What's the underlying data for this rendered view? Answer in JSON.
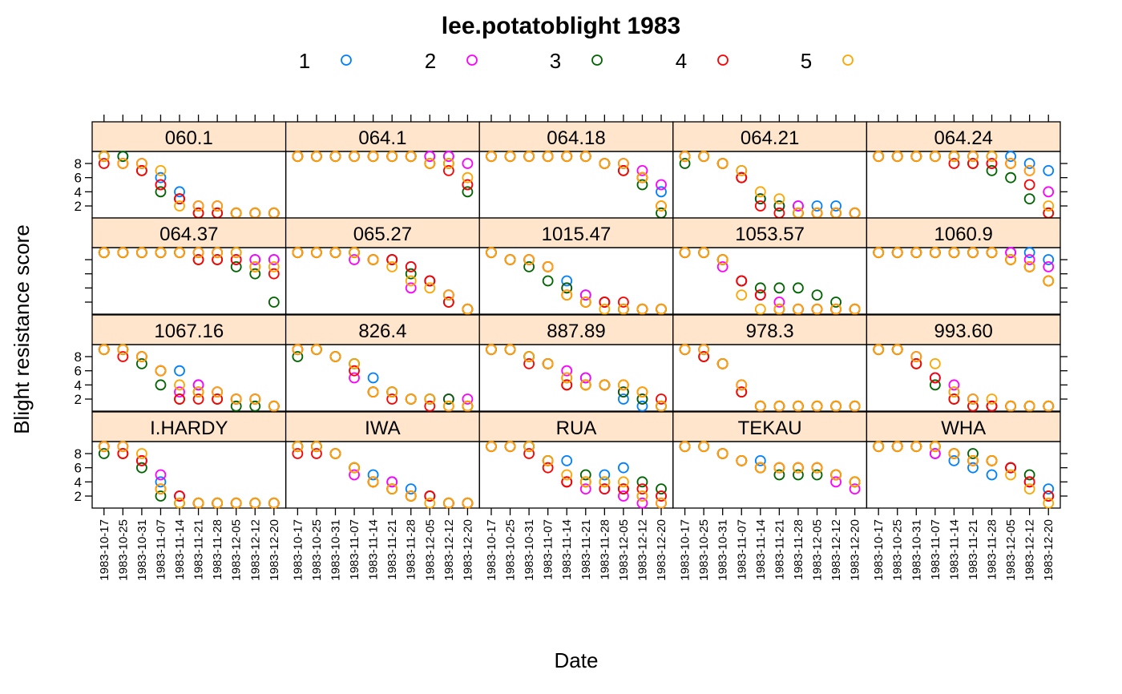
{
  "chart_data": {
    "type": "scatter",
    "title": "lee.potatoblight 1983",
    "xlabel": "Date",
    "ylabel": "Blight resistance score",
    "layout": {
      "columns": 5,
      "rows": 4
    },
    "y_ticks": [
      2,
      4,
      6,
      8
    ],
    "ylim": [
      0.3,
      9.7
    ],
    "dates": [
      "1983-10-17",
      "1983-10-25",
      "1983-10-31",
      "1983-11-07",
      "1983-11-14",
      "1983-11-21",
      "1983-11-28",
      "1983-12-05",
      "1983-12-12",
      "1983-12-20"
    ],
    "legend": {
      "placement": "top",
      "entries": [
        {
          "label": "1",
          "color": "#0080ff"
        },
        {
          "label": "2",
          "color": "#ff00ff"
        },
        {
          "label": "3",
          "color": "#006400"
        },
        {
          "label": "4",
          "color": "#ff0000"
        },
        {
          "label": "5",
          "color": "#ffa500"
        }
      ]
    },
    "strip_color": "#ffe5cc",
    "panels": [
      {
        "name": "060.1",
        "series": [
          [
            9,
            9,
            8,
            6,
            4,
            2,
            2,
            1,
            1,
            1
          ],
          [
            9,
            8,
            8,
            5,
            3,
            2,
            2,
            1,
            1,
            1
          ],
          [
            9,
            9,
            7,
            4,
            3,
            1,
            1,
            1,
            1,
            1
          ],
          [
            8,
            8,
            7,
            5,
            3,
            1,
            1,
            1,
            1,
            1
          ],
          [
            9,
            8,
            8,
            7,
            2,
            2,
            2,
            1,
            1,
            1
          ]
        ]
      },
      {
        "name": "064.1",
        "series": [
          [
            9,
            9,
            9,
            9,
            9,
            9,
            9,
            9,
            9,
            5
          ],
          [
            9,
            9,
            9,
            9,
            9,
            9,
            9,
            9,
            9,
            8
          ],
          [
            9,
            9,
            9,
            9,
            9,
            9,
            9,
            8,
            8,
            4
          ],
          [
            9,
            9,
            9,
            9,
            9,
            9,
            9,
            8,
            7,
            5
          ],
          [
            9,
            9,
            9,
            9,
            9,
            9,
            9,
            8,
            8,
            6
          ]
        ]
      },
      {
        "name": "064.18",
        "series": [
          [
            9,
            9,
            9,
            9,
            9,
            9,
            8,
            8,
            6,
            4
          ],
          [
            9,
            9,
            9,
            9,
            9,
            9,
            8,
            8,
            7,
            5
          ],
          [
            9,
            9,
            9,
            9,
            9,
            9,
            8,
            7,
            5,
            1
          ],
          [
            9,
            9,
            9,
            9,
            9,
            9,
            8,
            7,
            6,
            2
          ],
          [
            9,
            9,
            9,
            9,
            9,
            9,
            8,
            8,
            6,
            2
          ]
        ]
      },
      {
        "name": "064.21",
        "series": [
          [
            9,
            9,
            8,
            7,
            3,
            2,
            2,
            2,
            2,
            1
          ],
          [
            9,
            9,
            8,
            6,
            3,
            2,
            2,
            1,
            1,
            1
          ],
          [
            8,
            9,
            8,
            6,
            3,
            2,
            1,
            1,
            1,
            1
          ],
          [
            9,
            9,
            8,
            6,
            2,
            1,
            1,
            1,
            1,
            1
          ],
          [
            9,
            9,
            8,
            7,
            4,
            3,
            1,
            1,
            1,
            1
          ]
        ]
      },
      {
        "name": "064.24",
        "series": [
          [
            9,
            9,
            9,
            9,
            9,
            9,
            9,
            9,
            8,
            7
          ],
          [
            9,
            9,
            9,
            9,
            9,
            9,
            8,
            8,
            7,
            4
          ],
          [
            9,
            9,
            9,
            9,
            9,
            8,
            7,
            6,
            3,
            1
          ],
          [
            9,
            9,
            9,
            9,
            8,
            8,
            8,
            8,
            5,
            1
          ],
          [
            9,
            9,
            9,
            9,
            9,
            9,
            9,
            8,
            7,
            2
          ]
        ]
      },
      {
        "name": "064.37",
        "series": [
          [
            9,
            9,
            9,
            9,
            9,
            9,
            9,
            9,
            8,
            8
          ],
          [
            9,
            9,
            9,
            9,
            9,
            9,
            9,
            8,
            8,
            8
          ],
          [
            9,
            9,
            9,
            9,
            9,
            8,
            8,
            7,
            6,
            2
          ],
          [
            9,
            9,
            9,
            9,
            9,
            8,
            8,
            8,
            7,
            6
          ],
          [
            9,
            9,
            9,
            9,
            9,
            9,
            9,
            9,
            7,
            7
          ]
        ]
      },
      {
        "name": "065.27",
        "series": [
          [
            9,
            9,
            9,
            9,
            8,
            8,
            7,
            5,
            3,
            1
          ],
          [
            9,
            9,
            9,
            8,
            8,
            8,
            4,
            5,
            3,
            1
          ],
          [
            9,
            9,
            9,
            9,
            8,
            8,
            6,
            5,
            2,
            1
          ],
          [
            9,
            9,
            9,
            9,
            8,
            8,
            7,
            5,
            2,
            1
          ],
          [
            9,
            9,
            9,
            9,
            8,
            7,
            5,
            4,
            3,
            1
          ]
        ]
      },
      {
        "name": "1015.47",
        "series": [
          [
            9,
            8,
            8,
            7,
            5,
            3,
            2,
            1,
            1,
            1
          ],
          [
            9,
            8,
            8,
            7,
            4,
            3,
            2,
            1,
            1,
            1
          ],
          [
            9,
            8,
            7,
            5,
            4,
            2,
            2,
            1,
            1,
            1
          ],
          [
            9,
            8,
            8,
            7,
            3,
            2,
            2,
            2,
            1,
            1
          ],
          [
            9,
            8,
            8,
            7,
            3,
            2,
            1,
            1,
            1,
            1
          ]
        ]
      },
      {
        "name": "1053.57",
        "series": [
          [
            9,
            9,
            8,
            5,
            3,
            1,
            1,
            1,
            1,
            1
          ],
          [
            9,
            9,
            7,
            5,
            3,
            2,
            1,
            1,
            1,
            1
          ],
          [
            9,
            9,
            8,
            5,
            4,
            4,
            4,
            3,
            2,
            1
          ],
          [
            9,
            9,
            8,
            5,
            3,
            1,
            1,
            1,
            1,
            1
          ],
          [
            9,
            9,
            8,
            3,
            1,
            1,
            1,
            1,
            1,
            1
          ]
        ]
      },
      {
        "name": "1060.9",
        "series": [
          [
            9,
            9,
            9,
            9,
            9,
            9,
            9,
            9,
            9,
            8
          ],
          [
            9,
            9,
            9,
            9,
            9,
            9,
            9,
            9,
            8,
            7
          ],
          [
            9,
            9,
            9,
            9,
            9,
            9,
            9,
            8,
            7,
            5
          ],
          [
            9,
            9,
            9,
            9,
            9,
            9,
            9,
            8,
            7,
            5
          ],
          [
            9,
            9,
            9,
            9,
            9,
            9,
            9,
            8,
            7,
            5
          ]
        ]
      },
      {
        "name": "1067.16",
        "series": [
          [
            9,
            9,
            8,
            6,
            6,
            4,
            3,
            2,
            2,
            1
          ],
          [
            9,
            9,
            8,
            6,
            3,
            4,
            3,
            2,
            2,
            1
          ],
          [
            9,
            9,
            7,
            4,
            2,
            3,
            2,
            1,
            1,
            1
          ],
          [
            9,
            8,
            8,
            6,
            2,
            2,
            2,
            2,
            2,
            1
          ],
          [
            9,
            9,
            8,
            6,
            4,
            3,
            3,
            2,
            2,
            1
          ]
        ]
      },
      {
        "name": "826.4",
        "series": [
          [
            9,
            9,
            8,
            7,
            5,
            3,
            2,
            2,
            2,
            1
          ],
          [
            9,
            9,
            8,
            5,
            3,
            3,
            2,
            2,
            2,
            2
          ],
          [
            8,
            9,
            8,
            7,
            3,
            3,
            2,
            2,
            2,
            1
          ],
          [
            9,
            9,
            8,
            6,
            3,
            2,
            2,
            1,
            1,
            1
          ],
          [
            9,
            9,
            8,
            7,
            3,
            3,
            2,
            2,
            1,
            1
          ]
        ]
      },
      {
        "name": "887.89",
        "series": [
          [
            9,
            9,
            8,
            7,
            5,
            5,
            4,
            2,
            1,
            1
          ],
          [
            9,
            9,
            8,
            7,
            6,
            5,
            4,
            3,
            2,
            1
          ],
          [
            9,
            9,
            8,
            7,
            4,
            4,
            4,
            3,
            2,
            1
          ],
          [
            9,
            9,
            7,
            7,
            4,
            4,
            4,
            4,
            3,
            2
          ],
          [
            9,
            9,
            8,
            7,
            5,
            4,
            4,
            4,
            3,
            1
          ]
        ]
      },
      {
        "name": "978.3",
        "series": [
          [
            9,
            9,
            7,
            4,
            1,
            1,
            1,
            1,
            1,
            1
          ],
          [
            9,
            9,
            7,
            4,
            1,
            1,
            1,
            1,
            1,
            1
          ],
          [
            9,
            8,
            7,
            3,
            1,
            1,
            1,
            1,
            1,
            1
          ],
          [
            9,
            8,
            7,
            3,
            1,
            1,
            1,
            1,
            1,
            1
          ],
          [
            9,
            9,
            7,
            4,
            1,
            1,
            1,
            1,
            1,
            1
          ]
        ]
      },
      {
        "name": "993.60",
        "series": [
          [
            9,
            9,
            8,
            5,
            3,
            2,
            1,
            1,
            1,
            1
          ],
          [
            9,
            9,
            8,
            5,
            4,
            2,
            1,
            1,
            1,
            1
          ],
          [
            9,
            9,
            7,
            4,
            2,
            1,
            1,
            1,
            1,
            1
          ],
          [
            9,
            9,
            7,
            5,
            2,
            1,
            1,
            1,
            1,
            1
          ],
          [
            9,
            9,
            8,
            7,
            3,
            2,
            2,
            1,
            1,
            1
          ]
        ]
      },
      {
        "name": "I.HARDY",
        "series": [
          [
            9,
            9,
            7,
            4,
            2,
            1,
            1,
            1,
            1,
            1
          ],
          [
            9,
            9,
            7,
            5,
            2,
            1,
            1,
            1,
            1,
            1
          ],
          [
            8,
            8,
            6,
            2,
            1,
            1,
            1,
            1,
            1,
            1
          ],
          [
            9,
            8,
            7,
            3,
            2,
            1,
            1,
            1,
            1,
            1
          ],
          [
            9,
            9,
            8,
            3,
            1,
            1,
            1,
            1,
            1,
            1
          ]
        ]
      },
      {
        "name": "IWA",
        "series": [
          [
            9,
            9,
            8,
            6,
            5,
            4,
            3,
            2,
            1,
            1
          ],
          [
            9,
            9,
            8,
            5,
            4,
            4,
            2,
            2,
            1,
            1
          ],
          [
            9,
            9,
            8,
            6,
            4,
            3,
            2,
            2,
            1,
            1
          ],
          [
            8,
            8,
            8,
            6,
            4,
            3,
            2,
            2,
            1,
            1
          ],
          [
            9,
            9,
            8,
            6,
            4,
            3,
            2,
            1,
            1,
            1
          ]
        ]
      },
      {
        "name": "RUA",
        "series": [
          [
            9,
            9,
            9,
            7,
            7,
            4,
            5,
            6,
            2,
            2
          ],
          [
            9,
            9,
            9,
            7,
            4,
            3,
            3,
            2,
            1,
            1
          ],
          [
            9,
            9,
            9,
            7,
            4,
            5,
            4,
            3,
            4,
            3
          ],
          [
            9,
            9,
            8,
            6,
            4,
            4,
            3,
            3,
            3,
            2
          ],
          [
            9,
            9,
            9,
            7,
            5,
            4,
            4,
            4,
            2,
            1
          ]
        ]
      },
      {
        "name": "TEKAU",
        "series": [
          [
            9,
            9,
            8,
            7,
            7,
            6,
            6,
            6,
            5,
            4
          ],
          [
            9,
            9,
            8,
            7,
            6,
            6,
            6,
            6,
            4,
            3
          ],
          [
            9,
            9,
            8,
            7,
            6,
            5,
            5,
            5,
            5,
            4
          ],
          [
            9,
            9,
            8,
            7,
            6,
            6,
            6,
            6,
            5,
            4
          ],
          [
            9,
            9,
            8,
            7,
            6,
            6,
            6,
            6,
            5,
            4
          ]
        ]
      },
      {
        "name": "WHA",
        "series": [
          [
            9,
            9,
            9,
            8,
            7,
            6,
            5,
            6,
            4,
            3
          ],
          [
            9,
            9,
            9,
            8,
            8,
            7,
            7,
            6,
            4,
            2
          ],
          [
            9,
            9,
            9,
            9,
            8,
            8,
            7,
            6,
            5,
            2
          ],
          [
            9,
            9,
            9,
            9,
            8,
            7,
            7,
            6,
            4,
            2
          ],
          [
            9,
            9,
            9,
            9,
            8,
            7,
            7,
            5,
            3,
            1
          ]
        ]
      }
    ]
  }
}
